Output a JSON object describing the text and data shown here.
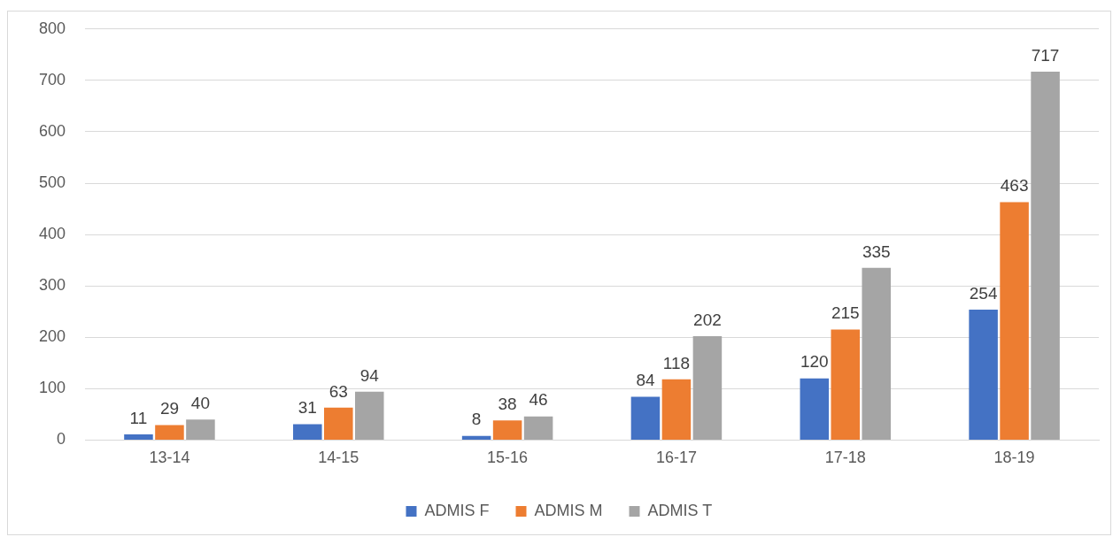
{
  "chart_data": {
    "type": "bar",
    "categories": [
      "13-14",
      "14-15",
      "15-16",
      "16-17",
      "17-18",
      "18-19"
    ],
    "series": [
      {
        "name": "ADMIS F",
        "color": "#4472c4",
        "values": [
          11,
          31,
          8,
          84,
          120,
          254
        ]
      },
      {
        "name": "ADMIS M",
        "color": "#ed7d31",
        "values": [
          29,
          63,
          38,
          118,
          215,
          463
        ]
      },
      {
        "name": "ADMIS T",
        "color": "#a5a5a5",
        "values": [
          40,
          94,
          46,
          202,
          335,
          717
        ]
      }
    ],
    "ylim": [
      0,
      800
    ],
    "yticks": [
      0,
      100,
      200,
      300,
      400,
      500,
      600,
      700,
      800
    ],
    "grid": "y",
    "legend": "bottom",
    "data_labels": true
  }
}
